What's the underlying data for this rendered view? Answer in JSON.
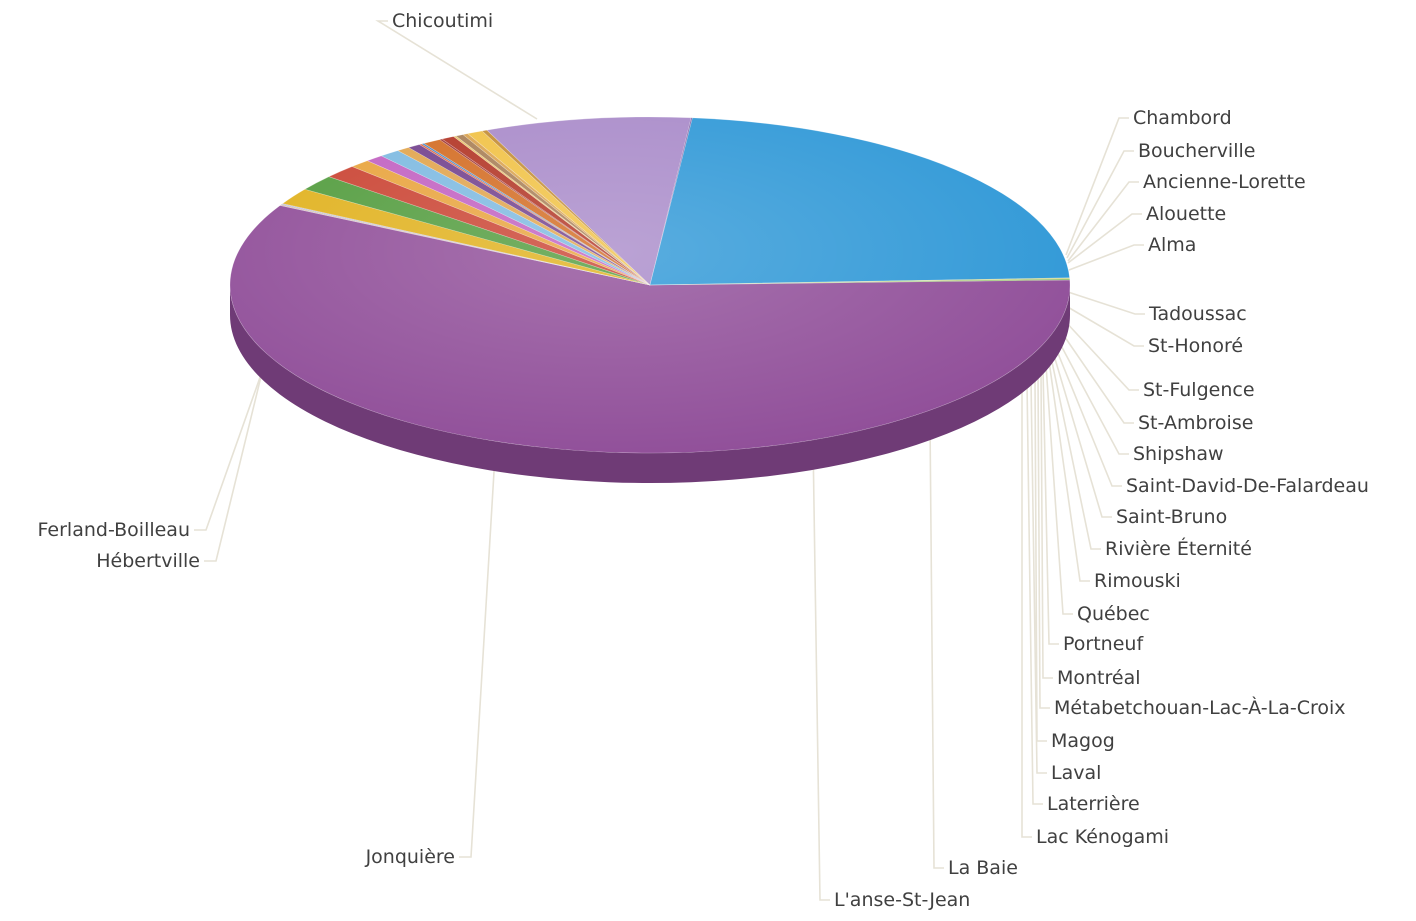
{
  "chart_data": {
    "type": "pie",
    "title": "",
    "style": "3d",
    "series": [
      {
        "labels": [
          "Chicoutimi",
          "Chambord",
          "Boucherville",
          "Ancienne-Lorette",
          "Alouette",
          "Alma",
          "Tadoussac",
          "St-Honoré",
          "St-Fulgence",
          "St-Ambroise",
          "Shipshaw",
          "Saint-David-De-Falardeau",
          "Saint-Bruno",
          "Rivière Éternité",
          "Rimouski",
          "Québec",
          "Portneuf",
          "Montréal",
          "Métabetchouan-Lac-À-La-Croix",
          "Magog",
          "Laval",
          "Laterrière",
          "Lac Kénogami",
          "La Baie",
          "L'anse-St-Jean",
          "Jonquière",
          "Hébertville",
          "Ferland-Boilleau"
        ],
        "values": [
          58.3,
          0.05,
          0.05,
          0.05,
          0.05,
          1.6,
          1.5,
          1.3,
          0.8,
          0.7,
          0.8,
          0.5,
          0.5,
          0.1,
          0.1,
          0.7,
          0.1,
          0.5,
          0.1,
          0.3,
          0.2,
          0.6,
          0.2,
          7.9,
          0.05,
          22.7,
          0.1,
          0.1
        ],
        "colors": [
          "#8e4b97",
          "#b48cc2",
          "#c98a3c",
          "#6aa0c8",
          "#9a6fc0",
          "#e0b01a",
          "#4f9a3a",
          "#c9402f",
          "#e8a23a",
          "#c05ec0",
          "#7bb8e0",
          "#e0a34a",
          "#6f3d8a",
          "#e05a30",
          "#3f84c6",
          "#d2691e",
          "#9a2a2a",
          "#b03020",
          "#e8c060",
          "#a67c52",
          "#d9a04a",
          "#f0c040",
          "#c28a2f",
          "#a788c8",
          "#7a56a0",
          "#2b96d6",
          "#c8d070",
          "#7fb24a"
        ]
      }
    ]
  }
}
